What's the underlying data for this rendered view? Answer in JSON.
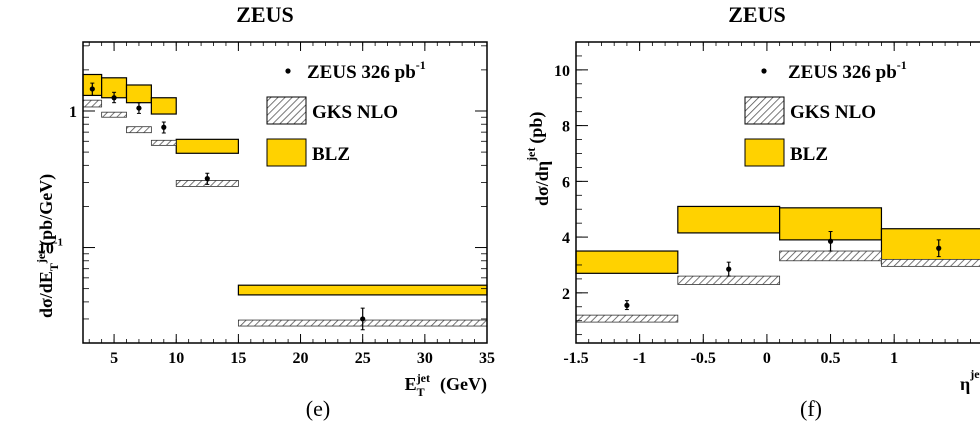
{
  "colors": {
    "blz": "#FFD200",
    "nlo_hatch": "#555555",
    "frame": "#000000"
  },
  "panels": [
    {
      "title": "ZEUS",
      "panel_label": "(e)",
      "ylabel_main": "dσ/dE",
      "ylabel_sub": "T",
      "ylabel_sup": "jet",
      "ylabel_unit": "(pb/GeV)",
      "xlabel_main": "E",
      "xlabel_sub": "T",
      "xlabel_sup": "jet",
      "xlabel_unit": "(GeV)",
      "legend": {
        "data_pre": "ZEUS 326 pb",
        "data_sup": "-1",
        "nlo": "GKS NLO",
        "blz": "BLZ"
      },
      "xticks": [
        "5",
        "10",
        "15",
        "20",
        "25",
        "30",
        "35"
      ],
      "yticks": [
        {
          "base": "1",
          "exp": ""
        },
        {
          "base": "10",
          "exp": "-1"
        }
      ]
    },
    {
      "title": "ZEUS",
      "panel_label": "(f)",
      "ylabel_main": "dσ/dη",
      "ylabel_sub": "",
      "ylabel_sup": "jet",
      "ylabel_unit": "(pb)",
      "xlabel_main": "η",
      "xlabel_sub": "",
      "xlabel_sup": "jet",
      "xlabel_unit": "",
      "legend": {
        "data_pre": "ZEUS 326 pb",
        "data_sup": "-1",
        "nlo": "GKS NLO",
        "blz": "BLZ"
      },
      "xticks": [
        "-1.5",
        "-1",
        "-0.5",
        "0",
        "0.5",
        "1"
      ],
      "yticks": [
        {
          "base": "2",
          "exp": ""
        },
        {
          "base": "4",
          "exp": ""
        },
        {
          "base": "6",
          "exp": ""
        },
        {
          "base": "8",
          "exp": ""
        },
        {
          "base": "10",
          "exp": ""
        }
      ]
    }
  ],
  "chart_data": [
    {
      "type": "scatter",
      "xlim": [
        2.5,
        35
      ],
      "ylim": [
        0.02,
        3.2
      ],
      "yscale": "log",
      "grid": false,
      "legend_position": "top-right",
      "data_points": [
        {
          "x": 3.25,
          "y": 1.45,
          "ylo": 1.3,
          "yhi": 1.6
        },
        {
          "x": 5,
          "y": 1.25,
          "ylo": 1.15,
          "yhi": 1.37
        },
        {
          "x": 7,
          "y": 1.05,
          "ylo": 0.96,
          "yhi": 1.15
        },
        {
          "x": 9,
          "y": 0.76,
          "ylo": 0.69,
          "yhi": 0.83
        },
        {
          "x": 12.5,
          "y": 0.32,
          "ylo": 0.29,
          "yhi": 0.35
        },
        {
          "x": 25,
          "y": 0.03,
          "ylo": 0.025,
          "yhi": 0.036
        }
      ],
      "nlo_bands": [
        {
          "x1": 2.5,
          "x2": 4,
          "ylo": 1.07,
          "yhi": 1.2
        },
        {
          "x1": 4,
          "x2": 6,
          "ylo": 0.9,
          "yhi": 0.98
        },
        {
          "x1": 6,
          "x2": 8,
          "ylo": 0.7,
          "yhi": 0.76
        },
        {
          "x1": 8,
          "x2": 10,
          "ylo": 0.56,
          "yhi": 0.61
        },
        {
          "x1": 10,
          "x2": 15,
          "ylo": 0.285,
          "yhi": 0.305
        },
        {
          "x1": 15,
          "x2": 35,
          "ylo": 0.0275,
          "yhi": 0.0285
        }
      ],
      "blz_bands": [
        {
          "x1": 2.5,
          "x2": 4,
          "ylo": 1.3,
          "yhi": 1.85
        },
        {
          "x1": 4,
          "x2": 6,
          "ylo": 1.25,
          "yhi": 1.75
        },
        {
          "x1": 6,
          "x2": 8,
          "ylo": 1.15,
          "yhi": 1.55
        },
        {
          "x1": 8,
          "x2": 10,
          "ylo": 0.95,
          "yhi": 1.25
        },
        {
          "x1": 10,
          "x2": 15,
          "ylo": 0.49,
          "yhi": 0.62
        },
        {
          "x1": 15,
          "x2": 35,
          "ylo": 0.045,
          "yhi": 0.053
        }
      ]
    },
    {
      "type": "scatter",
      "xlim": [
        -1.5,
        1.8
      ],
      "ylim": [
        0.2,
        11
      ],
      "yscale": "linear",
      "grid": false,
      "legend_position": "top-right",
      "data_points": [
        {
          "x": -1.1,
          "y": 1.55,
          "ylo": 1.4,
          "yhi": 1.72
        },
        {
          "x": -0.3,
          "y": 2.85,
          "ylo": 2.6,
          "yhi": 3.1
        },
        {
          "x": 0.5,
          "y": 3.85,
          "ylo": 3.5,
          "yhi": 4.2
        },
        {
          "x": 1.35,
          "y": 3.6,
          "ylo": 3.3,
          "yhi": 3.9
        }
      ],
      "nlo_bands": [
        {
          "x1": -1.5,
          "x2": -0.7,
          "ylo": 0.95,
          "yhi": 1.2
        },
        {
          "x1": -0.7,
          "x2": 0.1,
          "ylo": 2.3,
          "yhi": 2.6
        },
        {
          "x1": 0.1,
          "x2": 0.9,
          "ylo": 3.15,
          "yhi": 3.5
        },
        {
          "x1": 0.9,
          "x2": 1.8,
          "ylo": 2.95,
          "yhi": 3.2
        }
      ],
      "blz_bands": [
        {
          "x1": -1.5,
          "x2": -0.7,
          "ylo": 2.7,
          "yhi": 3.5
        },
        {
          "x1": -0.7,
          "x2": 0.1,
          "ylo": 4.15,
          "yhi": 5.1
        },
        {
          "x1": 0.1,
          "x2": 0.9,
          "ylo": 3.9,
          "yhi": 5.05
        },
        {
          "x1": 0.9,
          "x2": 1.8,
          "ylo": 3.05,
          "yhi": 4.3
        }
      ]
    }
  ]
}
